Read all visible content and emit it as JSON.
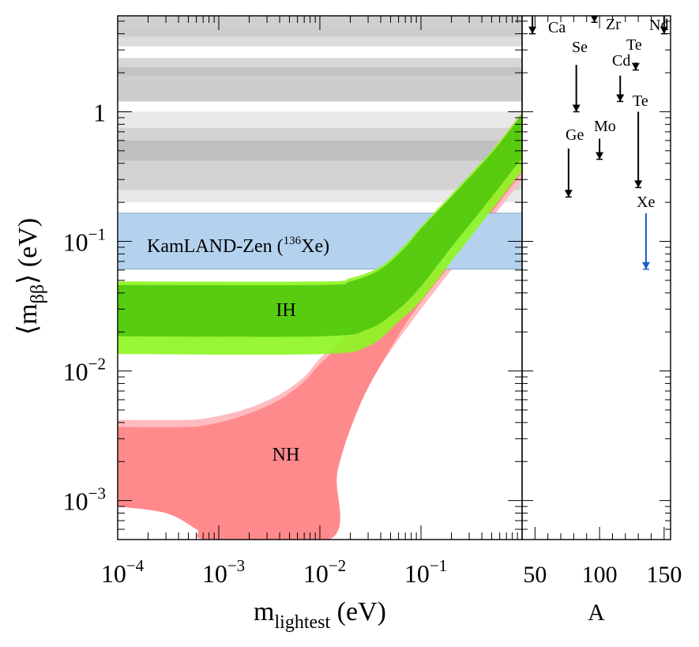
{
  "chart_data": [
    {
      "type": "area",
      "panel": "main",
      "xlabel": {
        "main": "m",
        "sub": "lightest",
        "unit": " (eV)"
      },
      "ylabel": {
        "open": "⟨m",
        "sub": "ββ",
        "close": "⟩ (eV)"
      },
      "x_scale": "log",
      "y_scale": "log",
      "xlim": [
        0.0001,
        1
      ],
      "ylim": [
        0.0005,
        5.5
      ],
      "x_ticks": [
        {
          "value": 0.0001,
          "base": "10",
          "exp": "−4"
        },
        {
          "value": 0.001,
          "base": "10",
          "exp": "−3"
        },
        {
          "value": 0.01,
          "base": "10",
          "exp": "−2"
        },
        {
          "value": 0.1,
          "base": "10",
          "exp": "−1"
        }
      ],
      "y_ticks": [
        {
          "value": 0.001,
          "base": "10",
          "exp": "−3"
        },
        {
          "value": 0.01,
          "base": "10",
          "exp": "−2"
        },
        {
          "value": 0.1,
          "base": "10",
          "exp": "−1"
        },
        {
          "value": 1,
          "base": "1",
          "exp": ""
        }
      ],
      "grey_limit_bands": [
        {
          "ymin": 4.6,
          "ymax": 5.5,
          "color": "#c0c0c0"
        },
        {
          "ymin": 3.8,
          "ymax": 4.6,
          "color": "#b0b0b0"
        },
        {
          "ymin": 3.2,
          "ymax": 5.5,
          "color": "#d0d0d0"
        },
        {
          "ymin": 1.9,
          "ymax": 2.6,
          "color": "#c8c8c8"
        },
        {
          "ymin": 1.2,
          "ymax": 2.2,
          "color": "#bcbcbc"
        },
        {
          "ymin": 0.2,
          "ymax": 1.0,
          "color": "#e0e0e0"
        },
        {
          "ymin": 0.25,
          "ymax": 0.75,
          "color": "#cccccc"
        },
        {
          "ymin": 0.42,
          "ymax": 0.6,
          "color": "#b8b8b8"
        }
      ],
      "kamland_band": {
        "ymin": 0.061,
        "ymax": 0.165,
        "color": "#b4d2ee",
        "label_main": "KamLAND-Zen (",
        "label_sup": "136",
        "label_end": "Xe)"
      },
      "ih_band": {
        "label": "IH",
        "outer_color": "#8ef524",
        "inner_color": "#4cc40a",
        "outer_lower": [
          [
            0.0001,
            0.0135
          ],
          [
            0.01,
            0.0135
          ],
          [
            0.03,
            0.0155
          ],
          [
            0.06,
            0.024
          ],
          [
            0.1,
            0.035
          ],
          [
            0.2,
            0.07
          ],
          [
            0.4,
            0.14
          ],
          [
            1,
            0.35
          ]
        ],
        "outer_upper": [
          [
            0.0001,
            0.049
          ],
          [
            0.01,
            0.049
          ],
          [
            0.02,
            0.052
          ],
          [
            0.04,
            0.064
          ],
          [
            0.07,
            0.095
          ],
          [
            0.1,
            0.13
          ],
          [
            0.2,
            0.23
          ],
          [
            0.5,
            0.5
          ],
          [
            1,
            0.98
          ]
        ],
        "inner_lower": [
          [
            0.0001,
            0.0185
          ],
          [
            0.01,
            0.0185
          ],
          [
            0.03,
            0.021
          ],
          [
            0.06,
            0.03
          ],
          [
            0.1,
            0.045
          ],
          [
            0.2,
            0.09
          ],
          [
            0.5,
            0.22
          ],
          [
            1,
            0.44
          ]
        ],
        "inner_upper": [
          [
            0.0001,
            0.046
          ],
          [
            0.01,
            0.046
          ],
          [
            0.02,
            0.049
          ],
          [
            0.04,
            0.061
          ],
          [
            0.07,
            0.09
          ],
          [
            0.1,
            0.125
          ],
          [
            0.2,
            0.22
          ],
          [
            0.5,
            0.48
          ],
          [
            1,
            0.95
          ]
        ]
      },
      "nh_band": {
        "label": "NH",
        "outer_color": "#ffbcc0",
        "inner_color": "#ff8a8c",
        "outer_upper": [
          [
            0.0001,
            0.0042
          ],
          [
            0.0005,
            0.0042
          ],
          [
            0.001,
            0.0045
          ],
          [
            0.002,
            0.0052
          ],
          [
            0.004,
            0.0066
          ],
          [
            0.007,
            0.009
          ],
          [
            0.01,
            0.0125
          ],
          [
            0.02,
            0.021
          ],
          [
            0.04,
            0.04
          ],
          [
            0.1,
            0.1
          ],
          [
            0.3,
            0.3
          ],
          [
            1,
            1
          ]
        ],
        "outer_lower": [
          [
            0.0001,
            0.0013
          ],
          [
            0.0004,
            0.0011
          ],
          [
            0.0008,
            0.0008
          ],
          [
            0.001,
            0.0006
          ],
          [
            0.0011,
            0.0005
          ],
          [
            0.0094,
            0.0005
          ],
          [
            0.012,
            0.0012
          ],
          [
            0.02,
            0.004
          ],
          [
            0.04,
            0.011
          ],
          [
            0.1,
            0.03
          ],
          [
            0.3,
            0.09
          ],
          [
            1,
            0.3
          ]
        ],
        "inner_upper": [
          [
            0.0001,
            0.0037
          ],
          [
            0.0005,
            0.0037
          ],
          [
            0.001,
            0.004
          ],
          [
            0.002,
            0.0047
          ],
          [
            0.004,
            0.006
          ],
          [
            0.007,
            0.0083
          ],
          [
            0.01,
            0.0113
          ],
          [
            0.02,
            0.019
          ],
          [
            0.04,
            0.036
          ],
          [
            0.1,
            0.09
          ],
          [
            0.3,
            0.27
          ],
          [
            1,
            0.9
          ]
        ],
        "inner_lower": [
          [
            0.0001,
            0.0009
          ],
          [
            0.0003,
            0.0008
          ],
          [
            0.0006,
            0.0006
          ],
          [
            0.0008,
            0.0005
          ],
          [
            0.0125,
            0.0005
          ],
          [
            0.015,
            0.0017
          ],
          [
            0.025,
            0.0055
          ],
          [
            0.05,
            0.015
          ],
          [
            0.1,
            0.034
          ],
          [
            0.3,
            0.1
          ],
          [
            1,
            0.34
          ]
        ]
      }
    },
    {
      "type": "scatter",
      "panel": "side",
      "xlabel": "A",
      "xlim": [
        40,
        155
      ],
      "ylim": [
        0.0005,
        5.5
      ],
      "x_ticks": [
        50,
        100,
        150
      ],
      "x_tick_labels": [
        "50",
        "100",
        "150"
      ],
      "series": [
        {
          "label": "Ca",
          "A": 48,
          "top": 5.5,
          "bottom": 4.0,
          "color": "#000000"
        },
        {
          "label": "Zr",
          "A": 96,
          "top": 5.5,
          "bottom": 4.9,
          "color": "#000000"
        },
        {
          "label": "Nd",
          "A": 150,
          "top": 5.5,
          "bottom": 4.0,
          "color": "#000000"
        },
        {
          "label": "Se",
          "A": 82,
          "top": 2.3,
          "bottom": 1.0,
          "color": "#000000"
        },
        {
          "label": "Te",
          "A": 128,
          "top": 2.4,
          "bottom": 2.1,
          "color": "#000000"
        },
        {
          "label": "Cd",
          "A": 116,
          "top": 1.9,
          "bottom": 1.2,
          "color": "#000000"
        },
        {
          "label": "Te",
          "A": 130,
          "top": 1.0,
          "bottom": 0.26,
          "color": "#000000"
        },
        {
          "label": "Mo",
          "A": 100,
          "top": 0.62,
          "bottom": 0.43,
          "color": "#000000"
        },
        {
          "label": "Ge",
          "A": 76,
          "top": 0.52,
          "bottom": 0.22,
          "color": "#000000"
        },
        {
          "label": "Xe",
          "A": 136,
          "top": 0.165,
          "bottom": 0.061,
          "color": "#1a5cc8"
        }
      ]
    }
  ]
}
